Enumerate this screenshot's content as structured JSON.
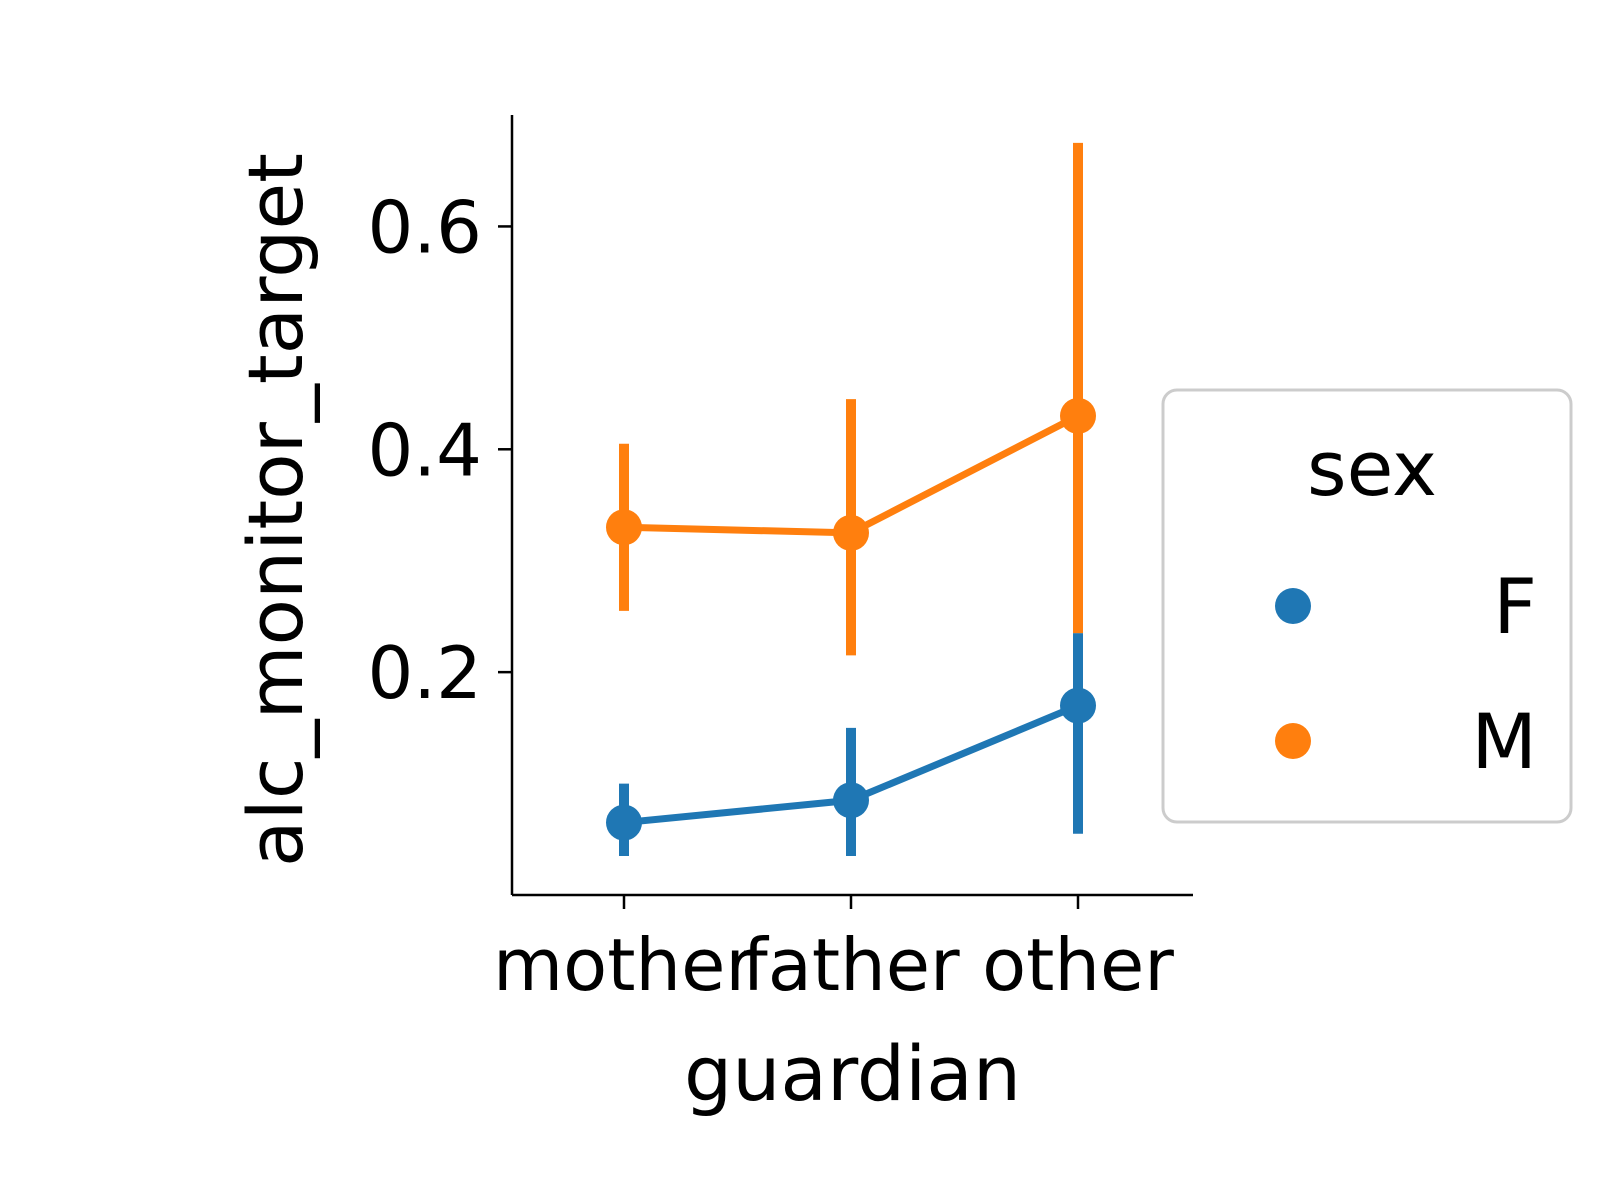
{
  "chart_data": {
    "type": "point",
    "xlabel": "guardian",
    "ylabel": "alc_monitor_target",
    "categories": [
      "mother",
      "father",
      "other"
    ],
    "ylim": [
      0.0,
      0.7
    ],
    "yticks": [
      0.2,
      0.4,
      0.6
    ],
    "ytick_labels": [
      "0.2",
      "0.4",
      "0.6"
    ],
    "grid": false,
    "legend": {
      "title": "sex",
      "placement": "right outside"
    },
    "series": [
      {
        "name": "F",
        "color": "#1f77b4",
        "values": [
          0.065,
          0.085,
          0.17
        ],
        "ci_low": [
          0.035,
          0.035,
          0.055
        ],
        "ci_high": [
          0.1,
          0.15,
          0.235
        ]
      },
      {
        "name": "M",
        "color": "#ff7f0e",
        "values": [
          0.33,
          0.325,
          0.43
        ],
        "ci_low": [
          0.255,
          0.215,
          0.235
        ],
        "ci_high": [
          0.405,
          0.445,
          0.675
        ]
      }
    ]
  }
}
